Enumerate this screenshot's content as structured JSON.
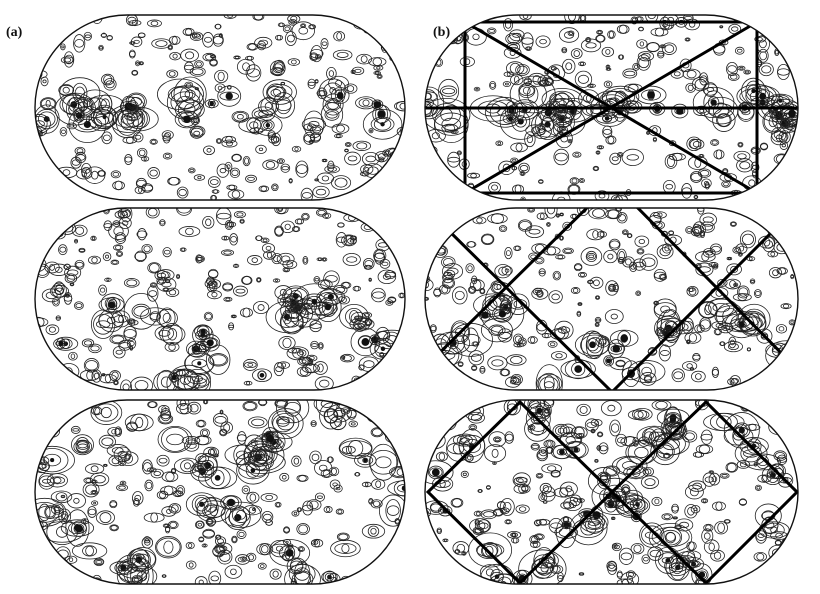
{
  "figure": {
    "panel_labels": [
      "(a)",
      "(b)"
    ]
  }
}
